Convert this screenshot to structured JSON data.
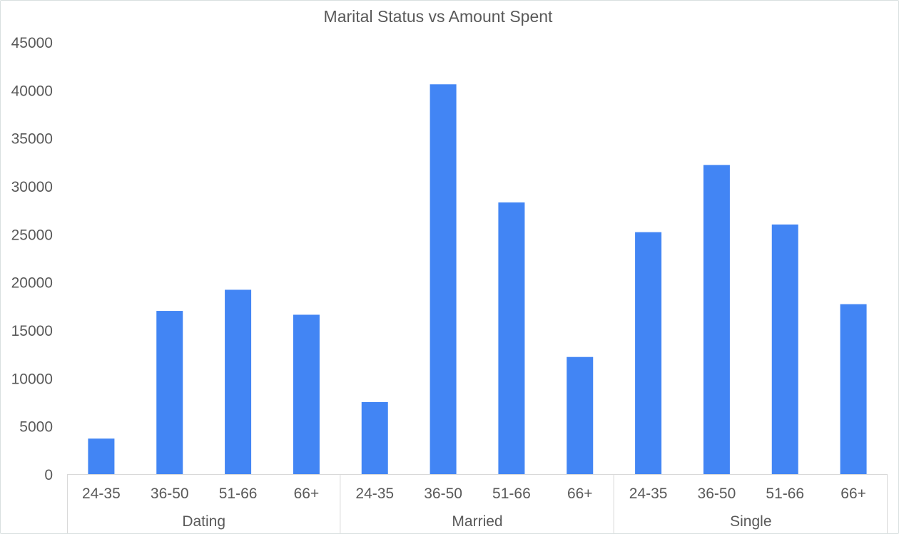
{
  "chart_data": {
    "type": "bar",
    "title": "Marital Status vs Amount Spent",
    "xlabel": "",
    "ylabel": "",
    "ylim": [
      0,
      45000
    ],
    "yticks": [
      "0",
      "5000",
      "10000",
      "15000",
      "20000",
      "25000",
      "30000",
      "35000",
      "40000",
      "45000"
    ],
    "grid": false,
    "legend": "none",
    "bar_color": "#4285f4",
    "groups": [
      {
        "name": "Dating",
        "categories": [
          "24-35",
          "36-50",
          "51-66",
          "66+"
        ],
        "values": [
          3700,
          17000,
          19200,
          16600
        ]
      },
      {
        "name": "Married",
        "categories": [
          "24-35",
          "36-50",
          "51-66",
          "66+"
        ],
        "values": [
          7500,
          40600,
          28300,
          12200
        ]
      },
      {
        "name": "Single",
        "categories": [
          "24-35",
          "36-50",
          "51-66",
          "66+"
        ],
        "values": [
          25200,
          32200,
          26000,
          17700
        ]
      }
    ]
  }
}
